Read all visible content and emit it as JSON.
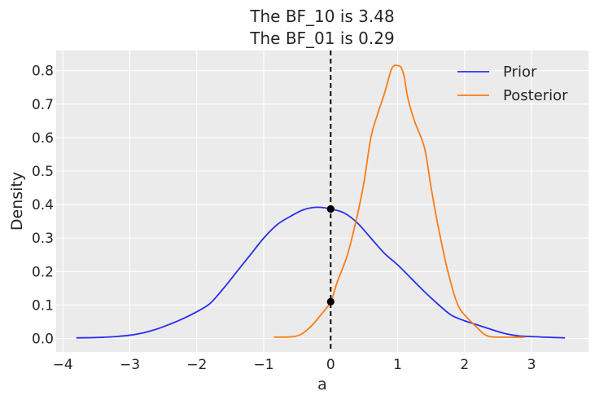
{
  "chart_data": {
    "type": "line",
    "title": [
      "The BF_10 is 3.48",
      "The BF_01 is 0.29"
    ],
    "xlabel": "a",
    "ylabel": "Density",
    "xlim": [
      -4.1,
      3.85
    ],
    "ylim": [
      -0.04,
      0.86
    ],
    "xticks": [
      -4,
      -3,
      -2,
      -1,
      0,
      1,
      2,
      3
    ],
    "xtick_labels": [
      "−4",
      "−3",
      "−2",
      "−1",
      "0",
      "1",
      "2",
      "3"
    ],
    "yticks": [
      0.0,
      0.1,
      0.2,
      0.3,
      0.4,
      0.5,
      0.6,
      0.7,
      0.8
    ],
    "ytick_labels": [
      "0.0",
      "0.1",
      "0.2",
      "0.3",
      "0.4",
      "0.5",
      "0.6",
      "0.7",
      "0.8"
    ],
    "grid": true,
    "legend_position": "top-right",
    "background_color": "#ebebeb",
    "series": [
      {
        "name": "Prior",
        "color": "#2a2eec",
        "x": [
          -3.8,
          -3.5,
          -3.2,
          -3.0,
          -2.8,
          -2.6,
          -2.4,
          -2.2,
          -2.0,
          -1.8,
          -1.6,
          -1.4,
          -1.2,
          -1.0,
          -0.8,
          -0.6,
          -0.4,
          -0.2,
          0.0,
          0.2,
          0.4,
          0.6,
          0.8,
          1.0,
          1.2,
          1.4,
          1.6,
          1.8,
          2.0,
          2.2,
          2.4,
          2.6,
          2.8,
          3.0,
          3.2,
          3.5
        ],
        "y": [
          0.002,
          0.003,
          0.006,
          0.01,
          0.017,
          0.028,
          0.043,
          0.06,
          0.08,
          0.105,
          0.15,
          0.2,
          0.25,
          0.3,
          0.34,
          0.365,
          0.385,
          0.392,
          0.387,
          0.375,
          0.345,
          0.3,
          0.255,
          0.22,
          0.18,
          0.14,
          0.103,
          0.07,
          0.053,
          0.04,
          0.027,
          0.015,
          0.008,
          0.006,
          0.004,
          0.002
        ]
      },
      {
        "name": "Posterior",
        "color": "#fa7c17",
        "x": [
          -0.85,
          -0.6,
          -0.45,
          -0.3,
          -0.15,
          0.0,
          0.1,
          0.25,
          0.4,
          0.5,
          0.6,
          0.7,
          0.8,
          0.9,
          0.95,
          1.0,
          1.05,
          1.1,
          1.15,
          1.25,
          1.4,
          1.5,
          1.6,
          1.75,
          1.9,
          2.05,
          2.2,
          2.3,
          2.4,
          2.6,
          2.9
        ],
        "y": [
          0.004,
          0.005,
          0.012,
          0.035,
          0.07,
          0.11,
          0.17,
          0.25,
          0.37,
          0.47,
          0.6,
          0.67,
          0.73,
          0.8,
          0.815,
          0.815,
          0.81,
          0.78,
          0.72,
          0.65,
          0.57,
          0.45,
          0.34,
          0.2,
          0.1,
          0.06,
          0.03,
          0.012,
          0.005,
          0.004,
          0.004
        ]
      }
    ],
    "reference_line": {
      "x": 0,
      "color": "#000000"
    },
    "markers": [
      {
        "x": 0,
        "y": 0.387
      },
      {
        "x": 0,
        "y": 0.11
      }
    ]
  }
}
